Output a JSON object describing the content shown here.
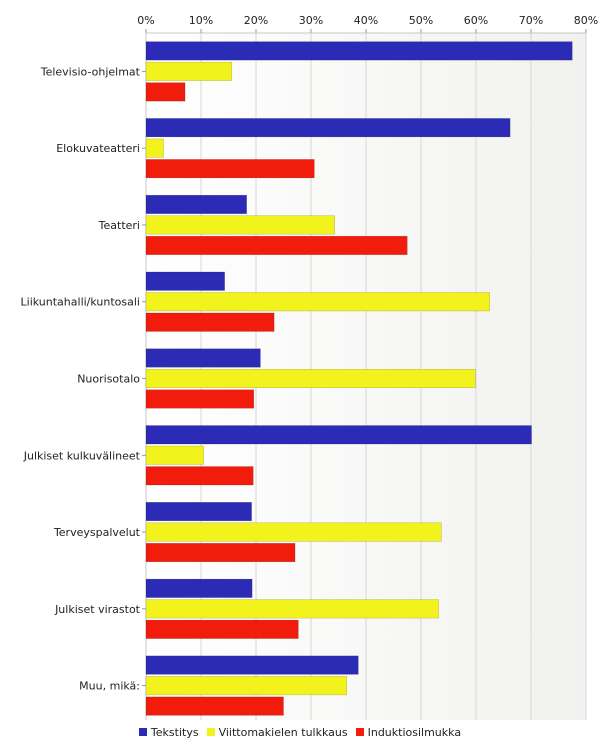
{
  "chart_data": {
    "type": "bar",
    "orientation": "horizontal",
    "title": "",
    "xlabel": "",
    "ylabel": "",
    "xlim": [
      0,
      80
    ],
    "x_ticks": [
      "0%",
      "10%",
      "20%",
      "30%",
      "40%",
      "50%",
      "60%",
      "70%",
      "80%"
    ],
    "grid": true,
    "legend_position": "bottom",
    "categories": [
      "Televisio-ohjelmat",
      "Elokuvateatteri",
      "Teatteri",
      "Liikuntahalli/kuntosali",
      "Nuorisotalo",
      "Julkiset kulkuvälineet",
      "Terveyspalvelut",
      "Julkiset virastot",
      "Muu, mikä:"
    ],
    "series": [
      {
        "name": "Tekstitys",
        "color": "#2b2bb5",
        "values": [
          77.5,
          66.2,
          18.3,
          14.3,
          20.8,
          70.1,
          19.2,
          19.3,
          38.6
        ]
      },
      {
        "name": "Viittomakielen tulkkaus",
        "color": "#f2f21c",
        "values": [
          15.6,
          3.2,
          34.3,
          62.5,
          59.9,
          10.5,
          53.7,
          53.2,
          36.5
        ]
      },
      {
        "name": "Induktiosilmukka",
        "color": "#f21c0c",
        "values": [
          7.1,
          30.6,
          47.5,
          23.3,
          19.6,
          19.5,
          27.1,
          27.7,
          25.0
        ]
      }
    ]
  }
}
